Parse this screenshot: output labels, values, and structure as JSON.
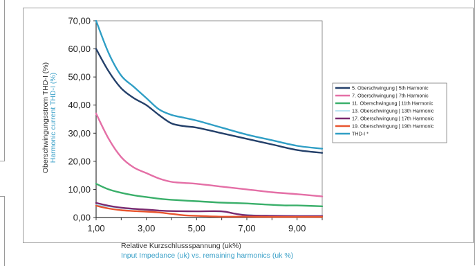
{
  "chart_data": {
    "type": "line",
    "xlabel": "Relative Kurzschlussspannung (uk%)",
    "xlabel_secondary": "Input Impedance (uk) vs. remaining harmonics (uk %)",
    "ylabel": "Oberschwingungsstrom THD-I (%)",
    "ylabel_secondary": "Harmonic current THD-I (%)",
    "xlim": [
      1,
      10
    ],
    "ylim": [
      0,
      70
    ],
    "x_ticks": [
      "1,00",
      "3,00",
      "5,00",
      "7,00",
      "9,00"
    ],
    "y_ticks": [
      "0,00",
      "10,00",
      "20,00",
      "30,00",
      "40,00",
      "50,00",
      "60,00",
      "70,00"
    ],
    "grid": false,
    "legend_position": "right",
    "series": [
      {
        "name": "5. Oberschwingung |   5th Harmonic",
        "color": "#24406a",
        "x": [
          1,
          1.5,
          2,
          2.5,
          3,
          3.5,
          4,
          4.5,
          5,
          6,
          7,
          8,
          9,
          10
        ],
        "y": [
          60,
          52,
          46,
          42.5,
          40,
          36.5,
          33.5,
          32.5,
          32,
          30,
          28,
          26,
          24,
          23
        ]
      },
      {
        "name": "7. Oberschwingung |   7th Harmonic",
        "color": "#e46fa6",
        "x": [
          1,
          1.5,
          2,
          2.5,
          3,
          3.5,
          4,
          4.5,
          5,
          6,
          7,
          8,
          9,
          10
        ],
        "y": [
          37,
          28,
          21.5,
          17.8,
          15.8,
          13.9,
          12.7,
          12.3,
          12,
          11,
          10,
          9,
          8.3,
          7.5
        ]
      },
      {
        "name": "11. Oberschwingung | 11th Harmonic",
        "color": "#3aaf6a",
        "x": [
          1,
          1.5,
          2,
          2.5,
          3,
          3.5,
          4,
          5,
          6,
          7,
          8,
          8.5,
          9,
          10
        ],
        "y": [
          12,
          10,
          8.8,
          7.9,
          7.3,
          6.7,
          6.3,
          5.8,
          5.3,
          5,
          4.5,
          4.3,
          4.3,
          4
        ]
      },
      {
        "name": "13. Oberschwingung | 13th Harmonic",
        "color": "#8fd3ea",
        "x": [
          1,
          2,
          3,
          4,
          5,
          6,
          7,
          8,
          9,
          10
        ],
        "y": [
          4.5,
          3.3,
          2.6,
          2.3,
          2.1,
          2,
          1,
          0.7,
          0.6,
          0.5
        ]
      },
      {
        "name": "17. Oberschwingung | 17th Harmonic",
        "color": "#7a2a70",
        "x": [
          1,
          1.5,
          2,
          2.5,
          3,
          3.5,
          4,
          5,
          6,
          6.5,
          7,
          8,
          9,
          10
        ],
        "y": [
          5.2,
          4.2,
          3.5,
          3.1,
          2.8,
          2.5,
          2.3,
          2.2,
          2.2,
          1.4,
          0.8,
          0.6,
          0.5,
          0.5
        ]
      },
      {
        "name": "19. Oberschwingung | 19th Harmonic",
        "color": "#e8552f",
        "x": [
          1,
          1.5,
          2,
          2.5,
          3,
          3.5,
          4,
          4.5,
          5,
          6,
          7,
          8,
          9,
          10
        ],
        "y": [
          4.2,
          3.2,
          2.6,
          2.3,
          2.1,
          1.8,
          1.3,
          0.8,
          0.6,
          0.3,
          0.3,
          0.2,
          0.2,
          0.2
        ]
      },
      {
        "name": "THD-I *",
        "color": "#2f9ec5",
        "x": [
          1,
          1.5,
          2,
          2.5,
          3,
          3.5,
          4,
          4.5,
          5,
          6,
          7,
          8,
          9,
          10
        ],
        "y": [
          70.5,
          58.5,
          50.5,
          46.5,
          42.5,
          38.5,
          36.5,
          35.5,
          34.5,
          32,
          29.5,
          27.5,
          25.5,
          24.5
        ]
      }
    ]
  }
}
